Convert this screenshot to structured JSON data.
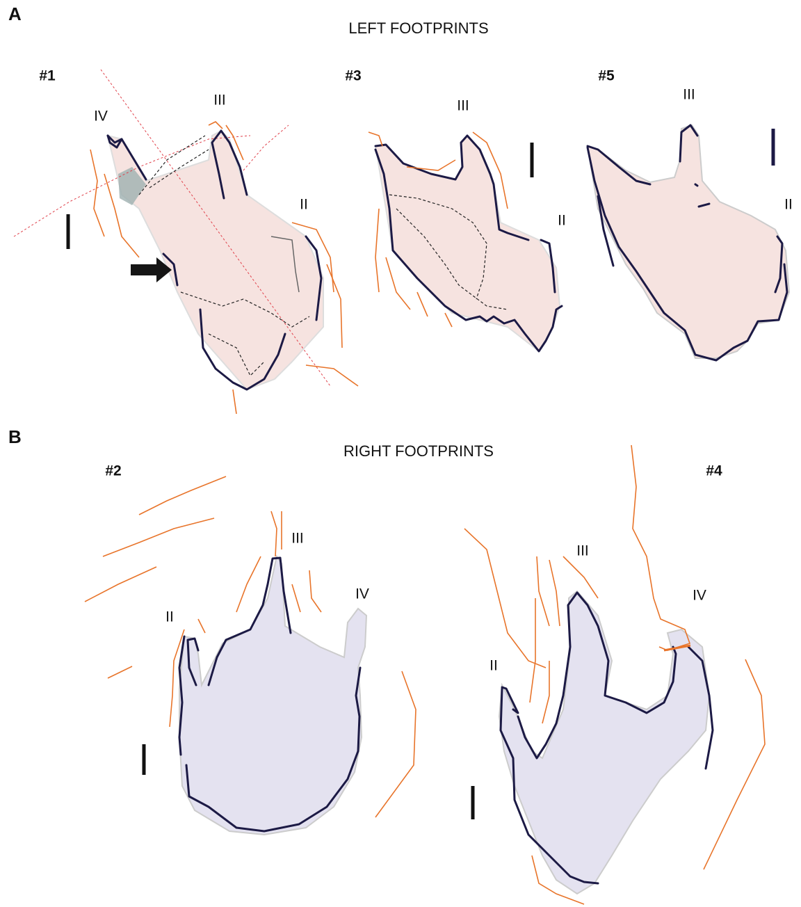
{
  "panels": [
    {
      "letter": "A",
      "title": "LEFT FOOTPRINTS",
      "prints": [
        {
          "id": "#1",
          "digits": [
            "IV",
            "III",
            "II"
          ]
        },
        {
          "id": "#3",
          "digits": [
            "III",
            "II"
          ]
        },
        {
          "id": "#5",
          "digits": [
            "III",
            "II"
          ]
        }
      ]
    },
    {
      "letter": "B",
      "title": "RIGHT FOOTPRINTS",
      "prints": [
        {
          "id": "#2",
          "digits": [
            "II",
            "III",
            "IV"
          ]
        },
        {
          "id": "#4",
          "digits": [
            "II",
            "III",
            "IV"
          ]
        }
      ]
    }
  ]
}
